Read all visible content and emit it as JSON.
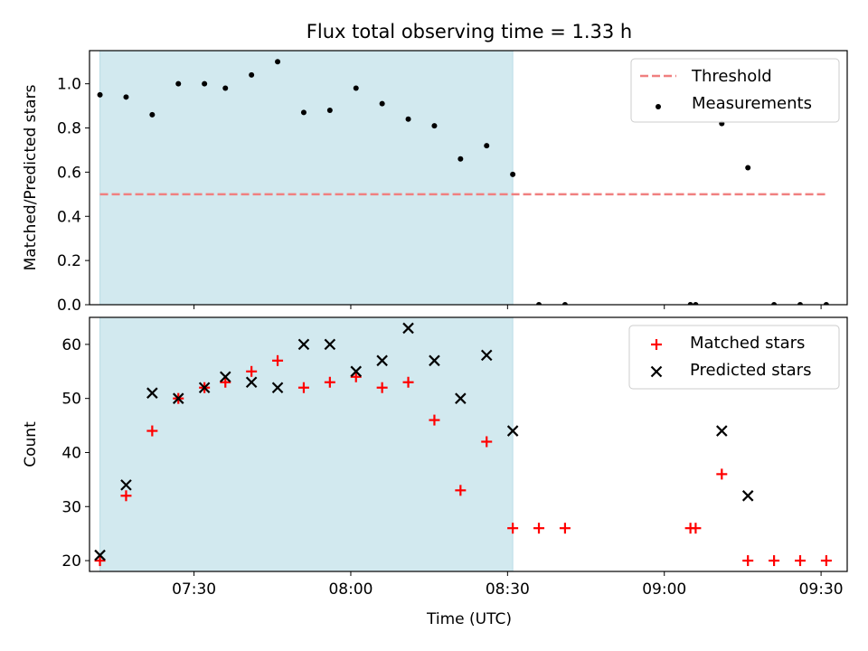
{
  "chart_data": [
    {
      "type": "scatter",
      "title": "Flux total observing time = 1.33 h",
      "ylabel": "Matched/Predicted stars",
      "xlabel": "",
      "xlim": [
        "07:10",
        "09:35"
      ],
      "ylim": [
        0,
        1.15
      ],
      "yticks": [
        0.0,
        0.2,
        0.4,
        0.6,
        0.8,
        1.0
      ],
      "ytick_labels": [
        "0.0",
        "0.2",
        "0.4",
        "0.6",
        "0.8",
        "1.0"
      ],
      "legend_position": "top-right",
      "shaded_region": {
        "x_start": "07:12",
        "x_end": "08:31",
        "color": "#d2e9ef"
      },
      "threshold": {
        "name": "Threshold",
        "value": 0.5,
        "x_start": "07:12",
        "x_end": "09:31",
        "color": "#f08080"
      },
      "series": [
        {
          "name": "Measurements",
          "color": "#000000",
          "marker": "dot",
          "x": [
            "07:12",
            "07:17",
            "07:22",
            "07:27",
            "07:32",
            "07:36",
            "07:41",
            "07:46",
            "07:51",
            "07:56",
            "08:01",
            "08:06",
            "08:11",
            "08:16",
            "08:21",
            "08:26",
            "08:31",
            "08:36",
            "08:41",
            "09:05",
            "09:06",
            "09:11",
            "09:16",
            "09:21",
            "09:26",
            "09:31"
          ],
          "y": [
            0.95,
            0.94,
            0.86,
            1.0,
            1.0,
            0.98,
            1.04,
            1.1,
            0.87,
            0.88,
            0.98,
            0.91,
            0.84,
            0.81,
            0.66,
            0.72,
            0.59,
            0,
            0,
            0,
            0,
            0.82,
            0.62,
            0,
            0,
            0
          ]
        }
      ]
    },
    {
      "type": "scatter",
      "title": "",
      "ylabel": "Count",
      "xlabel": "Time (UTC)",
      "xlim": [
        "07:10",
        "09:35"
      ],
      "ylim": [
        18,
        65
      ],
      "yticks": [
        20,
        30,
        40,
        50,
        60
      ],
      "ytick_labels": [
        "20",
        "30",
        "40",
        "50",
        "60"
      ],
      "xticks": [
        "07:30",
        "08:00",
        "08:30",
        "09:00",
        "09:30"
      ],
      "xtick_labels": [
        "07:30",
        "08:00",
        "08:30",
        "09:00",
        "09:30"
      ],
      "legend_position": "top-right",
      "shaded_region": {
        "x_start": "07:12",
        "x_end": "08:31",
        "color": "#d2e9ef"
      },
      "series": [
        {
          "name": "Matched stars",
          "color": "#ff0000",
          "marker": "plus",
          "x": [
            "07:12",
            "07:17",
            "07:22",
            "07:27",
            "07:32",
            "07:36",
            "07:41",
            "07:46",
            "07:51",
            "07:56",
            "08:01",
            "08:06",
            "08:11",
            "08:16",
            "08:21",
            "08:26",
            "08:31",
            "08:36",
            "08:41",
            "09:05",
            "09:06",
            "09:11",
            "09:16",
            "09:21",
            "09:26",
            "09:31"
          ],
          "y": [
            20,
            32,
            44,
            50,
            52,
            53,
            55,
            57,
            52,
            53,
            54,
            52,
            53,
            46,
            33,
            42,
            26,
            26,
            26,
            26,
            26,
            36,
            20,
            20,
            20,
            20
          ]
        },
        {
          "name": "Predicted stars",
          "color": "#000000",
          "marker": "x",
          "x": [
            "07:12",
            "07:17",
            "07:22",
            "07:27",
            "07:32",
            "07:36",
            "07:41",
            "07:46",
            "07:51",
            "07:56",
            "08:01",
            "08:06",
            "08:11",
            "08:16",
            "08:21",
            "08:26",
            "08:31",
            "09:11",
            "09:16"
          ],
          "y": [
            21,
            34,
            51,
            50,
            52,
            54,
            53,
            52,
            60,
            60,
            55,
            57,
            63,
            57,
            50,
            58,
            44,
            44,
            32
          ]
        }
      ]
    }
  ]
}
